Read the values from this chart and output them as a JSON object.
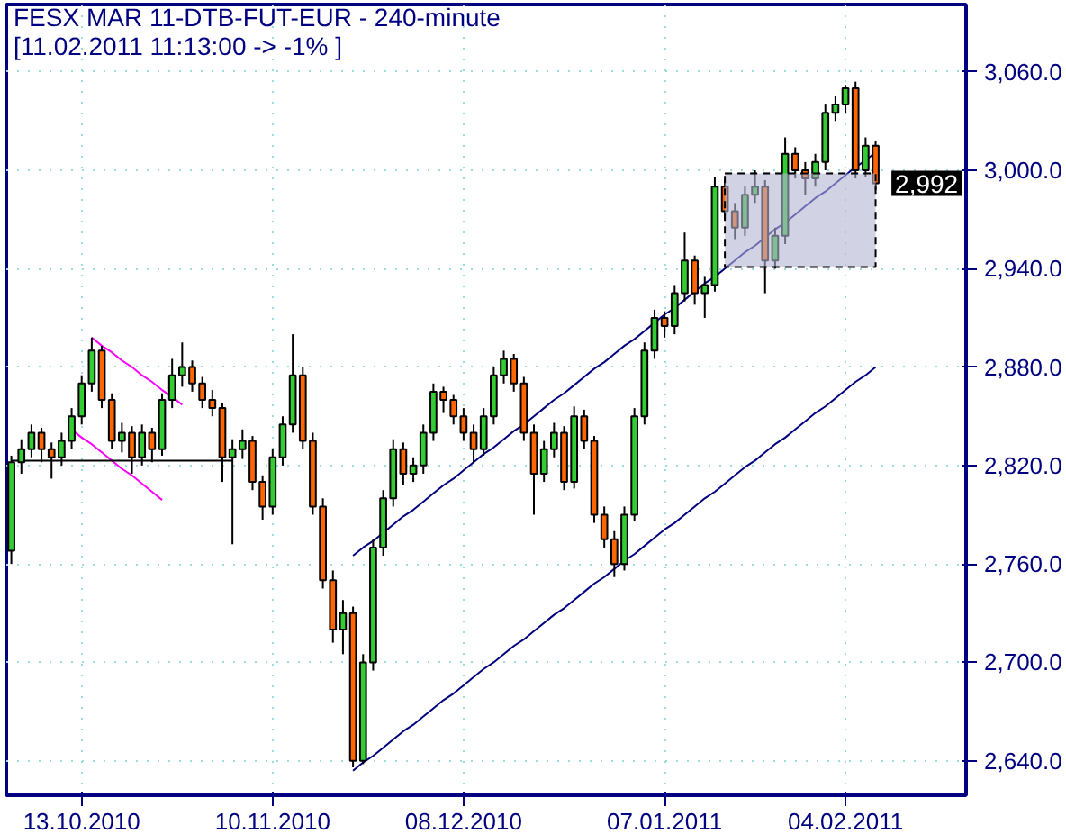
{
  "chart_data": {
    "type": "candlestick",
    "title": "FESX MAR 11-DTB-FUT-EUR - 240-minute",
    "subtitle": "[11.02.2011 11:13:00 -> -1% ]",
    "categories": [
      null,
      null,
      null,
      null,
      null,
      null,
      null,
      "13.10.2010",
      null,
      null,
      null,
      null,
      null,
      null,
      null,
      null,
      null,
      null,
      null,
      null,
      null,
      null,
      null,
      null,
      null,
      null,
      "10.11.2010",
      null,
      null,
      null,
      null,
      null,
      null,
      null,
      null,
      null,
      null,
      null,
      null,
      null,
      null,
      null,
      null,
      null,
      null,
      "08.12.2010",
      null,
      null,
      null,
      null,
      null,
      null,
      null,
      null,
      null,
      null,
      null,
      null,
      null,
      null,
      null,
      null,
      null,
      null,
      null,
      "07.01.2011",
      null,
      null,
      null,
      null,
      null,
      null,
      null,
      null,
      null,
      null,
      null,
      null,
      null,
      null,
      null,
      null,
      null,
      "04.02.2011",
      null,
      null,
      null
    ],
    "ohlc": [
      [
        2768,
        2826,
        2760,
        2822
      ],
      [
        2822,
        2836,
        2815,
        2830
      ],
      [
        2830,
        2845,
        2825,
        2840
      ],
      [
        2840,
        2843,
        2822,
        2830
      ],
      [
        2830,
        2834,
        2812,
        2825
      ],
      [
        2825,
        2840,
        2820,
        2835
      ],
      [
        2835,
        2855,
        2830,
        2850
      ],
      [
        2850,
        2875,
        2845,
        2870
      ],
      [
        2870,
        2898,
        2865,
        2890
      ],
      [
        2890,
        2893,
        2855,
        2860
      ],
      [
        2860,
        2864,
        2830,
        2835
      ],
      [
        2835,
        2846,
        2828,
        2840
      ],
      [
        2840,
        2844,
        2815,
        2825
      ],
      [
        2825,
        2845,
        2820,
        2840
      ],
      [
        2840,
        2843,
        2822,
        2830
      ],
      [
        2830,
        2864,
        2826,
        2860
      ],
      [
        2860,
        2885,
        2855,
        2875
      ],
      [
        2875,
        2895,
        2868,
        2880
      ],
      [
        2880,
        2884,
        2865,
        2870
      ],
      [
        2870,
        2874,
        2855,
        2860
      ],
      [
        2860,
        2866,
        2850,
        2855
      ],
      [
        2855,
        2858,
        2810,
        2825
      ],
      [
        2825,
        2836,
        2772,
        2830
      ],
      [
        2830,
        2842,
        2824,
        2835
      ],
      [
        2835,
        2838,
        2805,
        2810
      ],
      [
        2810,
        2814,
        2787,
        2795
      ],
      [
        2795,
        2830,
        2790,
        2825
      ],
      [
        2825,
        2850,
        2820,
        2845
      ],
      [
        2845,
        2900,
        2840,
        2875
      ],
      [
        2875,
        2880,
        2830,
        2835
      ],
      [
        2835,
        2840,
        2790,
        2795
      ],
      [
        2795,
        2800,
        2745,
        2750
      ],
      [
        2750,
        2756,
        2712,
        2720
      ],
      [
        2720,
        2738,
        2705,
        2730
      ],
      [
        2730,
        2734,
        2636,
        2640
      ],
      [
        2640,
        2705,
        2638,
        2700
      ],
      [
        2700,
        2775,
        2695,
        2770
      ],
      [
        2770,
        2805,
        2765,
        2800
      ],
      [
        2800,
        2836,
        2795,
        2830
      ],
      [
        2830,
        2834,
        2808,
        2815
      ],
      [
        2815,
        2825,
        2810,
        2820
      ],
      [
        2820,
        2845,
        2815,
        2840
      ],
      [
        2840,
        2870,
        2835,
        2865
      ],
      [
        2865,
        2868,
        2852,
        2860
      ],
      [
        2860,
        2863,
        2845,
        2850
      ],
      [
        2850,
        2855,
        2835,
        2840
      ],
      [
        2840,
        2845,
        2822,
        2830
      ],
      [
        2830,
        2855,
        2826,
        2850
      ],
      [
        2850,
        2880,
        2845,
        2875
      ],
      [
        2875,
        2890,
        2870,
        2885
      ],
      [
        2885,
        2888,
        2865,
        2870
      ],
      [
        2870,
        2874,
        2835,
        2840
      ],
      [
        2840,
        2845,
        2790,
        2815
      ],
      [
        2815,
        2835,
        2810,
        2830
      ],
      [
        2830,
        2846,
        2825,
        2840
      ],
      [
        2840,
        2844,
        2805,
        2810
      ],
      [
        2810,
        2856,
        2806,
        2850
      ],
      [
        2850,
        2854,
        2830,
        2835
      ],
      [
        2835,
        2838,
        2785,
        2790
      ],
      [
        2790,
        2795,
        2770,
        2775
      ],
      [
        2775,
        2780,
        2752,
        2760
      ],
      [
        2760,
        2795,
        2756,
        2790
      ],
      [
        2790,
        2855,
        2786,
        2850
      ],
      [
        2850,
        2895,
        2845,
        2890
      ],
      [
        2890,
        2915,
        2885,
        2910
      ],
      [
        2910,
        2914,
        2898,
        2905
      ],
      [
        2905,
        2930,
        2900,
        2925
      ],
      [
        2925,
        2962,
        2920,
        2945
      ],
      [
        2945,
        2948,
        2918,
        2925
      ],
      [
        2925,
        2935,
        2910,
        2930
      ],
      [
        2930,
        2996,
        2926,
        2990
      ],
      [
        2990,
        2994,
        2970,
        2975
      ],
      [
        2975,
        2980,
        2958,
        2965
      ],
      [
        2965,
        2990,
        2960,
        2985
      ],
      [
        2985,
        3000,
        2980,
        2990
      ],
      [
        2990,
        2994,
        2925,
        2945
      ],
      [
        2945,
        2965,
        2940,
        2960
      ],
      [
        2960,
        3020,
        2955,
        3010
      ],
      [
        3010,
        3014,
        2995,
        3000
      ],
      [
        3000,
        3005,
        2985,
        2995
      ],
      [
        2995,
        3010,
        2990,
        3005
      ],
      [
        3005,
        3040,
        3000,
        3035
      ],
      [
        3035,
        3045,
        3030,
        3040
      ],
      [
        3040,
        3052,
        3035,
        3050
      ],
      [
        3050,
        3054,
        2995,
        3000
      ],
      [
        3000,
        3020,
        2996,
        3015
      ],
      [
        3015,
        3018,
        2988,
        2992
      ]
    ],
    "colors": [
      "#33cc33",
      "#33cc33",
      "#33cc33",
      "#ff6600",
      "#ff6600",
      "#33cc33",
      "#33cc33",
      "#33cc33",
      "#33cc33",
      "#ff6600",
      "#ff6600",
      "#33cc33",
      "#ff6600",
      "#33cc33",
      "#ff6600",
      "#33cc33",
      "#33cc33",
      "#33cc33",
      "#ff6600",
      "#ff6600",
      "#ff6600",
      "#ff6600",
      "#33cc33",
      "#33cc33",
      "#ff6600",
      "#ff6600",
      "#33cc33",
      "#33cc33",
      "#33cc33",
      "#ff6600",
      "#ff6600",
      "#ff6600",
      "#ff6600",
      "#33cc33",
      "#ff6600",
      "#33cc33",
      "#33cc33",
      "#33cc33",
      "#33cc33",
      "#ff6600",
      "#33cc33",
      "#33cc33",
      "#33cc33",
      "#ff6600",
      "#ff6600",
      "#ff6600",
      "#ff6600",
      "#33cc33",
      "#33cc33",
      "#33cc33",
      "#ff6600",
      "#ff6600",
      "#ff6600",
      "#33cc33",
      "#33cc33",
      "#ff6600",
      "#33cc33",
      "#ff6600",
      "#ff6600",
      "#ff6600",
      "#ff6600",
      "#33cc33",
      "#33cc33",
      "#33cc33",
      "#33cc33",
      "#ff6600",
      "#33cc33",
      "#33cc33",
      "#ff6600",
      "#33cc33",
      "#33cc33",
      "#ff6600",
      "#ff6600",
      "#33cc33",
      "#33cc33",
      "#ff6600",
      "#33cc33",
      "#33cc33",
      "#ff6600",
      "#ff6600",
      "#33cc33",
      "#33cc33",
      "#33cc33",
      "#33cc33",
      "#ff6600",
      "#33cc33",
      "#ff6600"
    ],
    "series": [
      {
        "type": "line",
        "values": [
          null,
          null,
          null,
          null,
          null,
          null,
          null,
          null,
          null,
          null,
          null,
          null,
          null,
          null,
          null,
          null,
          null,
          null,
          null,
          null,
          null,
          null,
          null,
          null,
          null,
          null,
          null,
          null,
          null,
          null,
          null,
          null,
          null,
          null,
          null,
          null,
          null,
          null,
          null,
          null,
          null,
          null,
          null,
          null,
          null,
          null,
          null,
          null,
          null,
          null,
          null,
          null,
          null,
          null,
          null,
          null,
          null,
          null,
          null,
          null,
          null,
          null,
          null,
          null,
          null,
          null,
          null,
          null,
          null,
          null,
          null,
          2998,
          2998,
          2998,
          2998,
          2998,
          2998,
          2998,
          2998,
          2998,
          2998,
          2998,
          2998,
          2998,
          2998,
          2998,
          2998
        ],
        "upper": [
          null,
          null,
          null,
          null,
          null,
          null,
          null,
          null,
          null,
          null,
          null,
          null,
          null,
          null,
          null,
          null,
          null,
          null,
          null,
          null,
          null,
          null,
          null,
          null,
          null,
          null,
          null,
          null,
          null,
          null,
          null,
          null,
          null,
          null,
          null,
          null,
          null,
          null,
          null,
          null,
          null,
          null,
          null,
          null,
          null,
          null,
          null,
          null,
          null,
          null,
          null,
          null,
          null,
          null,
          null,
          null,
          null,
          null,
          null,
          null,
          null,
          null,
          null,
          null,
          null,
          null,
          null,
          null,
          null,
          null,
          null,
          2998,
          2998,
          2998,
          2998,
          2998,
          2998,
          2998,
          2998,
          2998,
          2998,
          2998,
          2998,
          2998,
          2998,
          2998,
          2998
        ],
        "lower": [
          null,
          null,
          null,
          null,
          null,
          null,
          null,
          null,
          null,
          null,
          null,
          null,
          null,
          null,
          null,
          null,
          null,
          null,
          null,
          null,
          null,
          null,
          null,
          null,
          null,
          null,
          null,
          null,
          null,
          null,
          null,
          null,
          null,
          null,
          null,
          null,
          null,
          null,
          null,
          null,
          null,
          null,
          null,
          null,
          null,
          null,
          null,
          null,
          null,
          null,
          null,
          null,
          null,
          null,
          null,
          null,
          null,
          null,
          null,
          null,
          null,
          null,
          null,
          null,
          null,
          null,
          null,
          null,
          null,
          null,
          null,
          2941,
          2941,
          2941,
          2941,
          2941,
          2941,
          2941,
          2941,
          2941,
          2941,
          2941,
          2941,
          2941,
          2941,
          2941,
          2941
        ],
        "color": "#b4b4d4",
        "line_style": "dashed"
      },
      {
        "type": "line",
        "values": [
          null,
          null,
          null,
          null,
          null,
          null,
          null,
          null,
          null,
          null,
          null,
          null,
          null,
          null,
          null,
          null,
          null,
          null,
          null,
          null,
          null,
          null,
          null,
          null,
          null,
          null,
          null,
          null,
          null,
          null,
          null,
          null,
          null,
          null,
          2765,
          2770,
          2774,
          2779,
          2784,
          2789,
          2793,
          2798,
          2803,
          2808,
          2812,
          2817,
          2822,
          2827,
          2831,
          2836,
          2841,
          2845,
          2850,
          2855,
          2860,
          2864,
          2869,
          2874,
          2879,
          2883,
          2888,
          2893,
          2897,
          2902,
          2907,
          2912,
          2916,
          2921,
          2926,
          2931,
          2935,
          2940,
          2945,
          2950,
          2954,
          2959,
          2964,
          2968,
          2973,
          2978,
          2983,
          2987,
          2992,
          2997,
          3002,
          3006,
          3011
        ],
        "color": "#000080"
      },
      {
        "type": "line",
        "values": [
          null,
          null,
          null,
          null,
          null,
          null,
          null,
          null,
          null,
          null,
          null,
          null,
          null,
          null,
          null,
          null,
          null,
          null,
          null,
          null,
          null,
          null,
          null,
          null,
          null,
          null,
          null,
          null,
          null,
          null,
          null,
          null,
          null,
          null,
          2634,
          2639,
          2643,
          2648,
          2653,
          2658,
          2662,
          2667,
          2672,
          2677,
          2681,
          2686,
          2691,
          2696,
          2700,
          2705,
          2710,
          2714,
          2719,
          2724,
          2729,
          2733,
          2738,
          2743,
          2748,
          2752,
          2757,
          2762,
          2766,
          2771,
          2776,
          2781,
          2785,
          2790,
          2795,
          2800,
          2804,
          2809,
          2814,
          2819,
          2823,
          2828,
          2833,
          2837,
          2842,
          2847,
          2852,
          2856,
          2861,
          2866,
          2871,
          2875,
          2880
        ],
        "color": "#000080"
      },
      {
        "type": "line",
        "values": [
          null,
          null,
          null,
          null,
          null,
          null,
          null,
          null,
          2898,
          2893,
          2889,
          2884,
          2880,
          2875,
          2871,
          2866,
          2862,
          2857,
          null,
          null,
          null,
          null,
          null,
          null,
          null,
          null,
          null,
          null,
          null,
          null,
          null,
          null,
          null,
          null,
          null,
          null,
          null,
          null,
          null,
          null,
          null,
          null,
          null,
          null,
          null,
          null,
          null,
          null,
          null,
          null,
          null,
          null,
          null,
          null,
          null,
          null,
          null,
          null,
          null,
          null,
          null,
          null,
          null,
          null,
          null,
          null,
          null,
          null,
          null,
          null,
          null,
          null,
          null,
          null,
          null,
          null,
          null,
          null,
          null,
          null,
          null,
          null,
          null,
          null,
          null,
          null,
          null
        ],
        "color": "#ff00ff"
      },
      {
        "type": "line",
        "values": [
          null,
          null,
          null,
          null,
          null,
          null,
          2842,
          2837,
          2833,
          2828,
          2823,
          2818,
          2814,
          2809,
          2804,
          2799,
          null,
          null,
          null,
          null,
          null,
          null,
          null,
          null,
          null,
          null,
          null,
          null,
          null,
          null,
          null,
          null,
          null,
          null,
          null,
          null,
          null,
          null,
          null,
          null,
          null,
          null,
          null,
          null,
          null,
          null,
          null,
          null,
          null,
          null,
          null,
          null,
          null,
          null,
          null,
          null,
          null,
          null,
          null,
          null,
          null,
          null,
          null,
          null,
          null,
          null,
          null,
          null,
          null,
          null,
          null,
          null,
          null,
          null,
          null,
          null,
          null,
          null,
          null,
          null,
          null,
          null,
          null,
          null,
          null,
          null,
          null
        ],
        "color": "#ff00ff"
      },
      {
        "type": "line",
        "values": [
          2823,
          2823,
          2823,
          2823,
          2823,
          2823,
          2823,
          2823,
          2823,
          2823,
          2823,
          2823,
          2823,
          2823,
          2823,
          2823,
          2823,
          2823,
          2823,
          2823,
          2823,
          2823,
          2823,
          null,
          null,
          null,
          null,
          null,
          null,
          null,
          null,
          null,
          null,
          null,
          null,
          null,
          null,
          null,
          null,
          null,
          null,
          null,
          null,
          null,
          null,
          null,
          null,
          null,
          null,
          null,
          null,
          null,
          null,
          null,
          null,
          null,
          null,
          null,
          null,
          null,
          null,
          null,
          null,
          null,
          null,
          null,
          null,
          null,
          null,
          null,
          null,
          null,
          null,
          null,
          null,
          null,
          null,
          null,
          null,
          null,
          null,
          null,
          null,
          null,
          null,
          null,
          null
        ],
        "color": "#000000"
      }
    ],
    "annotations": [
      "2,992"
    ],
    "ylim": [
      2619,
      3101
    ],
    "yticks": [
      {
        "value": 2640,
        "label": "2,640.0"
      },
      {
        "value": 2700,
        "label": "2,700.0"
      },
      {
        "value": 2760,
        "label": "2,760.0"
      },
      {
        "value": 2820,
        "label": "2,820.0"
      },
      {
        "value": 2880,
        "label": "2,880.0"
      },
      {
        "value": 2940,
        "label": "2,940.0"
      },
      {
        "value": 3000,
        "label": "3,000.0"
      },
      {
        "value": 3060,
        "label": "3,060.0"
      }
    ],
    "grid": true
  }
}
